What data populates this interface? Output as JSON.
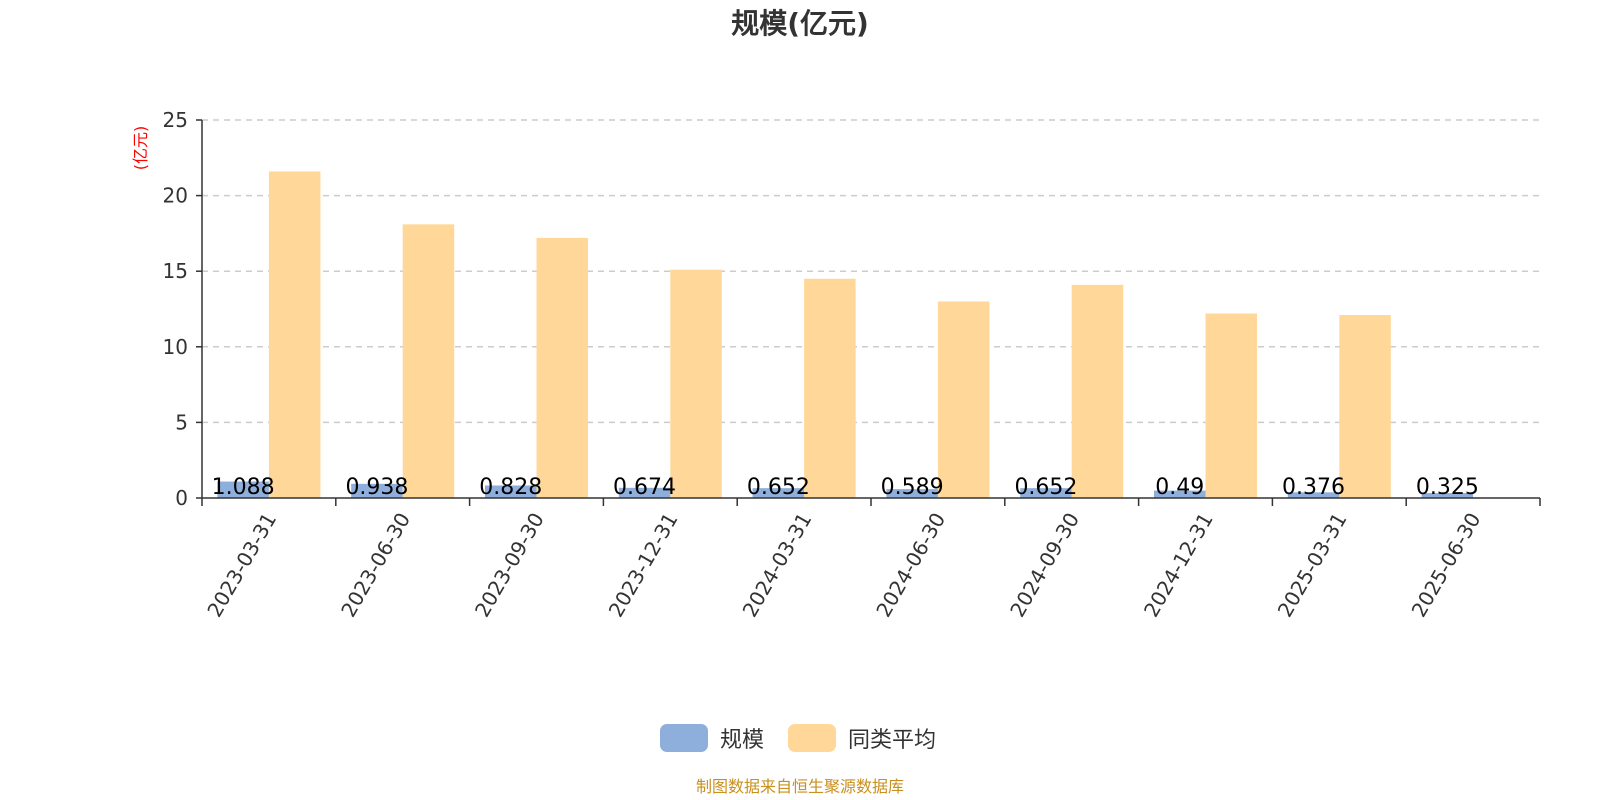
{
  "chart_data": {
    "type": "bar",
    "title": "规模(亿元)",
    "ylabel": "(亿元)",
    "ylim": [
      0,
      25
    ],
    "yticks": [
      0,
      5,
      10,
      15,
      20,
      25
    ],
    "grid": true,
    "legend_position": "bottom",
    "categories": [
      "2023-03-31",
      "2023-06-30",
      "2023-09-30",
      "2023-12-31",
      "2024-03-31",
      "2024-06-30",
      "2024-09-30",
      "2024-12-31",
      "2025-03-31",
      "2025-06-30"
    ],
    "series": [
      {
        "name": "规模",
        "color": "#8eaedb",
        "show_labels": true,
        "labels": [
          "1.088",
          "0.938",
          "0.828",
          "0.674",
          "0.652",
          "0.589",
          "0.652",
          "0.49",
          "0.376",
          "0.325"
        ],
        "values": [
          1.088,
          0.938,
          0.828,
          0.674,
          0.652,
          0.589,
          0.652,
          0.49,
          0.376,
          0.325
        ]
      },
      {
        "name": "同类平均",
        "color": "#ffd899",
        "show_labels": false,
        "values": [
          21.6,
          18.1,
          17.2,
          15.1,
          14.5,
          13.0,
          14.1,
          12.2,
          12.1,
          null
        ]
      }
    ]
  },
  "footer": {
    "source": "制图数据来自恒生聚源数据库"
  }
}
